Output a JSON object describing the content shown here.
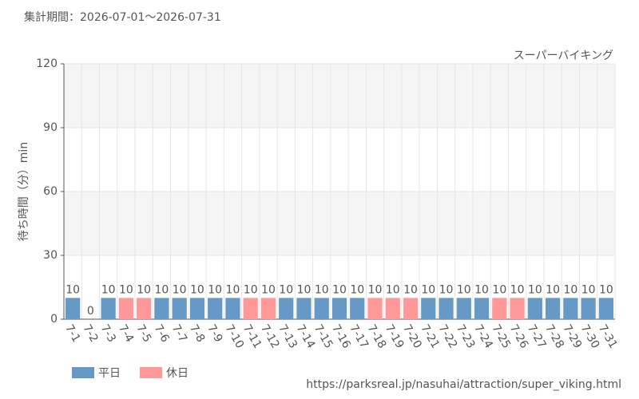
{
  "chart_data": {
    "type": "bar",
    "title": "集計期間：2026-07-01～2026-07-31",
    "subtitle": "スーパーバイキング",
    "y_label": "待ち時間（分）min",
    "source": "https://parksreal.jp/nasuhai/attraction/super_viking.html",
    "categories": [
      "7-1",
      "7-2",
      "7-3",
      "7-4",
      "7-5",
      "7-6",
      "7-7",
      "7-8",
      "7-9",
      "7-10",
      "7-11",
      "7-12",
      "7-13",
      "7-14",
      "7-15",
      "7-16",
      "7-17",
      "7-18",
      "7-19",
      "7-20",
      "7-21",
      "7-22",
      "7-23",
      "7-24",
      "7-25",
      "7-26",
      "7-27",
      "7-28",
      "7-29",
      "7-30",
      "7-31"
    ],
    "series": [
      {
        "name": "平日",
        "color": "#6699c6",
        "values": [
          10,
          0,
          10,
          null,
          null,
          10,
          10,
          10,
          10,
          10,
          null,
          null,
          10,
          10,
          10,
          10,
          10,
          null,
          null,
          null,
          10,
          10,
          10,
          10,
          null,
          null,
          10,
          10,
          10,
          10,
          10
        ]
      },
      {
        "name": "休日",
        "color": "#ff9999",
        "values": [
          null,
          null,
          null,
          10,
          10,
          null,
          null,
          null,
          null,
          null,
          10,
          10,
          null,
          null,
          null,
          null,
          null,
          10,
          10,
          10,
          null,
          null,
          null,
          null,
          10,
          10,
          null,
          null,
          null,
          null,
          null
        ]
      }
    ],
    "ylim": [
      0,
      120
    ],
    "yticks": [
      0,
      30,
      60,
      90,
      120
    ],
    "grid": true
  }
}
